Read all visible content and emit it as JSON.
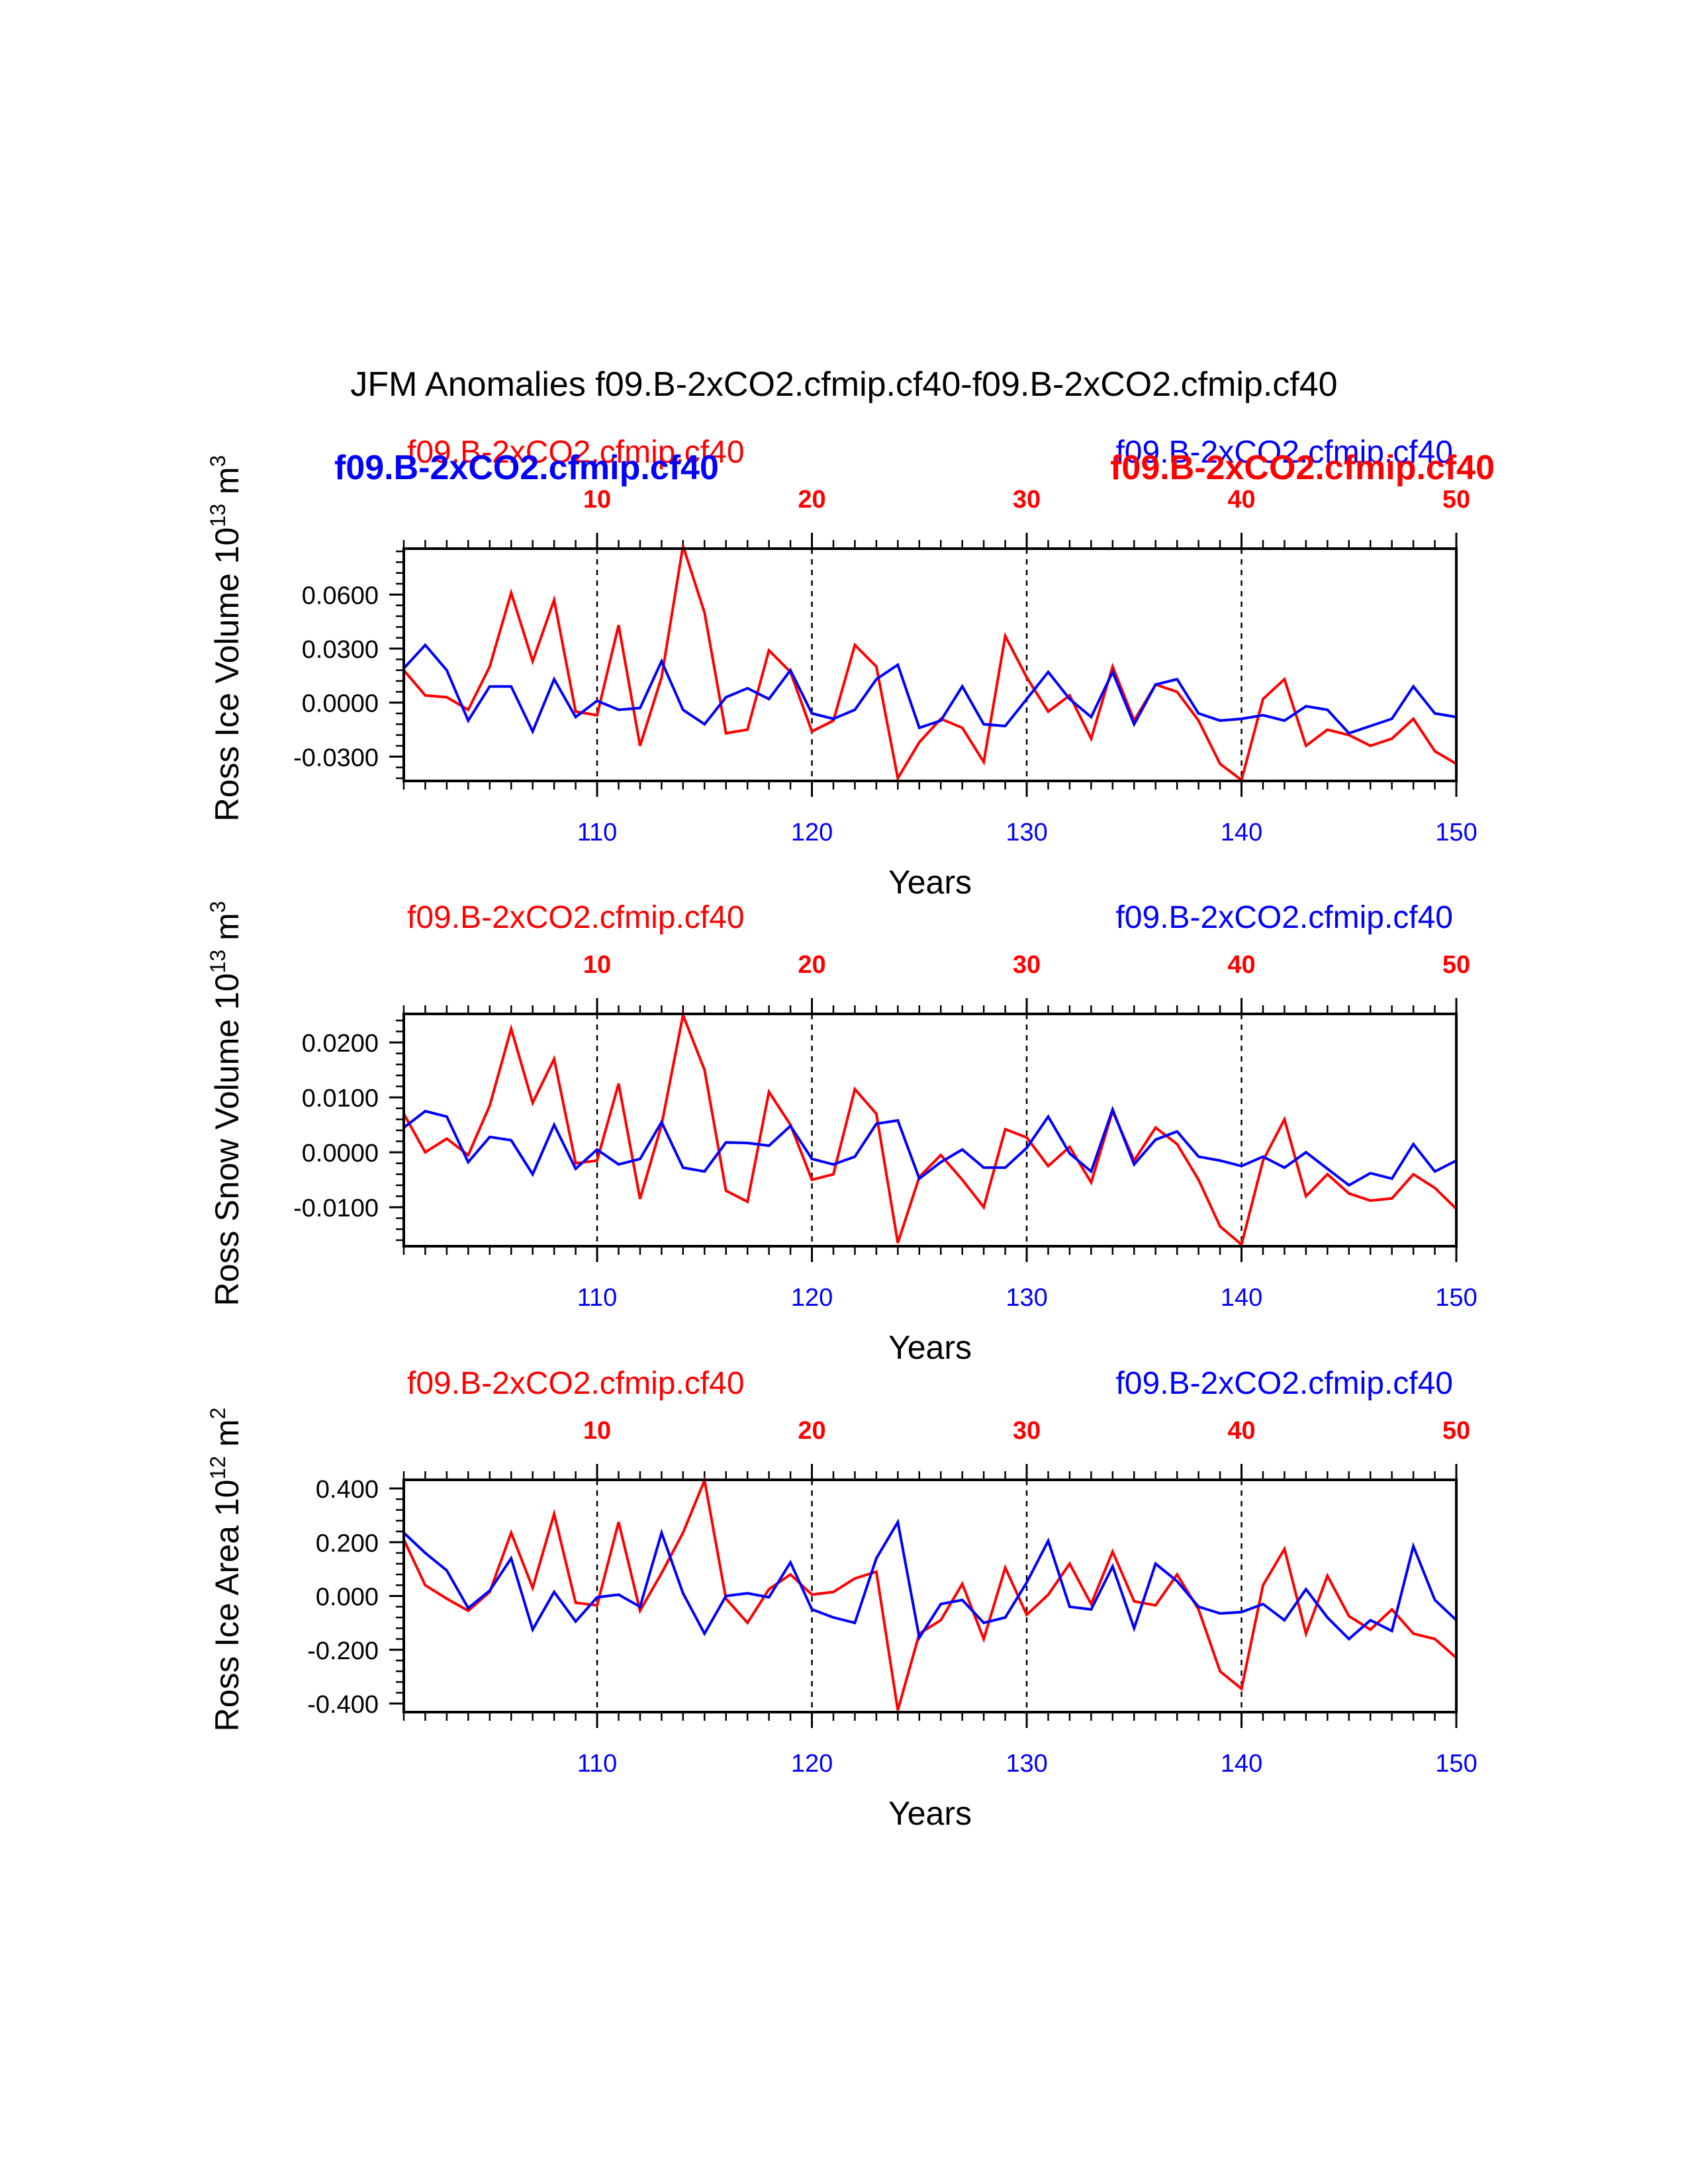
{
  "title": "JFM Anomalies f09.B-2xCO2.cfmip.cf40-f09.B-2xCO2.cfmip.cf40",
  "colors": {
    "series_a": "#ff0000",
    "series_b": "#0000ff",
    "axis": "#000000"
  },
  "chart_data": [
    {
      "type": "line",
      "ylabel": "Ross Ice Volume 10",
      "ylabel_sup": "13",
      "ylabel_unit": " m",
      "ylabel_unit_sup": "3",
      "xlabel": "Years",
      "top_left_label": "f09.B-2xCO2.cfmip.cf40",
      "top_right_label": "f09.B-2xCO2.cfmip.cf40",
      "overlay_left_label": "f09.B-2xCO2.cfmip.cf40",
      "overlay_right_label": "f09.B-2xCO2.cfmip.cf40",
      "xlim": [
        101,
        150
      ],
      "ylim": [
        -0.0435,
        0.0855
      ],
      "yticks": [
        0.06,
        0.03,
        0.0,
        -0.03
      ],
      "ytick_labels": [
        "0.0600",
        "0.0300",
        "0.0000",
        "-0.0300"
      ],
      "y_minor_step": 0.006,
      "bottom_ticks": [
        110,
        120,
        130,
        140,
        150
      ],
      "top_ticks": [
        10,
        20,
        30,
        40,
        50
      ],
      "top_axis_offset": 100,
      "dashed_at": [
        110,
        120,
        130,
        140
      ],
      "x": [
        101,
        102,
        103,
        104,
        105,
        106,
        107,
        108,
        109,
        110,
        111,
        112,
        113,
        114,
        115,
        116,
        117,
        118,
        119,
        120,
        121,
        122,
        123,
        124,
        125,
        126,
        127,
        128,
        129,
        130,
        131,
        132,
        133,
        134,
        135,
        136,
        137,
        138,
        139,
        140,
        141,
        142,
        143,
        144,
        145,
        146,
        147,
        148,
        149,
        150
      ],
      "series": [
        {
          "name": "red",
          "color": "#ff0000",
          "values": [
            0.018,
            0.004,
            0.003,
            -0.004,
            0.02,
            0.061,
            0.023,
            0.057,
            -0.005,
            -0.007,
            0.043,
            -0.024,
            0.014,
            0.087,
            0.05,
            -0.017,
            -0.015,
            0.029,
            0.017,
            -0.016,
            -0.01,
            0.032,
            0.02,
            -0.042,
            -0.022,
            -0.009,
            -0.014,
            -0.033,
            0.037,
            0.014,
            -0.005,
            0.004,
            -0.02,
            0.02,
            -0.01,
            0.01,
            0.006,
            -0.01,
            -0.034,
            -0.043,
            0.002,
            0.013,
            -0.024,
            -0.015,
            -0.018,
            -0.024,
            -0.02,
            -0.009,
            -0.027,
            -0.034
          ]
        },
        {
          "name": "blue",
          "color": "#0000ff",
          "values": [
            0.019,
            0.032,
            0.018,
            -0.01,
            0.009,
            0.009,
            -0.016,
            0.013,
            -0.008,
            0.001,
            -0.004,
            -0.003,
            0.023,
            -0.004,
            -0.012,
            0.003,
            0.008,
            0.002,
            0.018,
            -0.006,
            -0.009,
            -0.004,
            0.013,
            0.021,
            -0.014,
            -0.01,
            0.009,
            -0.012,
            -0.013,
            0.002,
            0.017,
            0.002,
            -0.008,
            0.017,
            -0.012,
            0.01,
            0.013,
            -0.006,
            -0.01,
            -0.009,
            -0.007,
            -0.01,
            -0.002,
            -0.004,
            -0.017,
            -0.013,
            -0.009,
            0.009,
            -0.006,
            -0.008
          ]
        }
      ]
    },
    {
      "type": "line",
      "ylabel": "Ross Snow Volume 10",
      "ylabel_sup": "13",
      "ylabel_unit": " m",
      "ylabel_unit_sup": "3",
      "xlabel": "Years",
      "top_left_label": "f09.B-2xCO2.cfmip.cf40",
      "top_right_label": "f09.B-2xCO2.cfmip.cf40",
      "xlim": [
        101,
        150
      ],
      "ylim": [
        -0.0171,
        0.0252
      ],
      "yticks": [
        0.02,
        0.01,
        0.0,
        -0.01
      ],
      "ytick_labels": [
        "0.0200",
        "0.0100",
        "0.0000",
        "-0.0100"
      ],
      "y_minor_step": 0.002,
      "bottom_ticks": [
        110,
        120,
        130,
        140,
        150
      ],
      "top_ticks": [
        10,
        20,
        30,
        40,
        50
      ],
      "top_axis_offset": 100,
      "dashed_at": [
        110,
        120,
        130,
        140
      ],
      "x": [
        101,
        102,
        103,
        104,
        105,
        106,
        107,
        108,
        109,
        110,
        111,
        112,
        113,
        114,
        115,
        116,
        117,
        118,
        119,
        120,
        121,
        122,
        123,
        124,
        125,
        126,
        127,
        128,
        129,
        130,
        131,
        132,
        133,
        134,
        135,
        136,
        137,
        138,
        139,
        140,
        141,
        142,
        143,
        144,
        145,
        146,
        147,
        148,
        149,
        150
      ],
      "series": [
        {
          "name": "red",
          "color": "#ff0000",
          "values": [
            0.007,
            0.0,
            0.0025,
            -0.0005,
            0.0085,
            0.0225,
            0.009,
            0.017,
            -0.002,
            -0.0015,
            0.0125,
            -0.0085,
            0.005,
            0.025,
            0.015,
            -0.007,
            -0.009,
            0.011,
            0.005,
            -0.005,
            -0.004,
            0.0115,
            0.007,
            -0.0165,
            -0.0045,
            -0.0005,
            -0.005,
            -0.01,
            0.0042,
            0.0027,
            -0.0025,
            0.001,
            -0.0055,
            0.0075,
            -0.0015,
            0.0045,
            0.0015,
            -0.005,
            -0.0135,
            -0.0168,
            -0.0015,
            0.006,
            -0.008,
            -0.004,
            -0.0075,
            -0.0088,
            -0.0084,
            -0.004,
            -0.0065,
            -0.0103
          ]
        },
        {
          "name": "blue",
          "color": "#0000ff",
          "values": [
            0.0045,
            0.0075,
            0.0065,
            -0.0018,
            0.0028,
            0.0022,
            -0.004,
            0.005,
            -0.003,
            0.0005,
            -0.0022,
            -0.0012,
            0.0055,
            -0.0028,
            -0.0035,
            0.0018,
            0.0017,
            0.0012,
            0.0048,
            -0.0012,
            -0.0022,
            -0.0008,
            0.0052,
            0.0058,
            -0.0048,
            -0.0018,
            0.0005,
            -0.0028,
            -0.0028,
            0.0008,
            0.0065,
            -0.0002,
            -0.0035,
            0.0078,
            -0.0022,
            0.0023,
            0.0038,
            -0.0008,
            -0.0015,
            -0.0025,
            -0.0008,
            -0.0028,
            0.0,
            -0.003,
            -0.006,
            -0.0038,
            -0.0048,
            0.0015,
            -0.0035,
            -0.0015
          ]
        }
      ]
    },
    {
      "type": "line",
      "ylabel": "Ross Ice Area 10",
      "ylabel_sup": "12",
      "ylabel_unit": " m",
      "ylabel_unit_sup": "2",
      "xlabel": "Years",
      "top_left_label": "f09.B-2xCO2.cfmip.cf40",
      "top_right_label": "f09.B-2xCO2.cfmip.cf40",
      "xlim": [
        101,
        150
      ],
      "ylim": [
        -0.432,
        0.432
      ],
      "yticks": [
        0.4,
        0.2,
        0.0,
        -0.2,
        -0.4
      ],
      "ytick_labels": [
        "0.400",
        "0.200",
        "0.000",
        "-0.200",
        "-0.400"
      ],
      "y_minor_step": 0.04,
      "bottom_ticks": [
        110,
        120,
        130,
        140,
        150
      ],
      "top_ticks": [
        10,
        20,
        30,
        40,
        50
      ],
      "top_axis_offset": 100,
      "dashed_at": [
        110,
        120,
        130,
        140
      ],
      "x": [
        101,
        102,
        103,
        104,
        105,
        106,
        107,
        108,
        109,
        110,
        111,
        112,
        113,
        114,
        115,
        116,
        117,
        118,
        119,
        120,
        121,
        122,
        123,
        124,
        125,
        126,
        127,
        128,
        129,
        130,
        131,
        132,
        133,
        134,
        135,
        136,
        137,
        138,
        139,
        140,
        141,
        142,
        143,
        144,
        145,
        146,
        147,
        148,
        149,
        150
      ],
      "series": [
        {
          "name": "red",
          "color": "#ff0000",
          "values": [
            0.21,
            0.04,
            -0.01,
            -0.055,
            0.015,
            0.235,
            0.03,
            0.305,
            -0.025,
            -0.035,
            0.275,
            -0.055,
            0.085,
            0.235,
            0.43,
            -0.01,
            -0.1,
            0.025,
            0.08,
            0.005,
            0.015,
            0.065,
            0.09,
            -0.425,
            -0.14,
            -0.09,
            0.045,
            -0.16,
            0.105,
            -0.07,
            0.005,
            0.12,
            -0.03,
            0.165,
            -0.02,
            -0.035,
            0.08,
            -0.05,
            -0.28,
            -0.345,
            0.04,
            0.175,
            -0.14,
            0.075,
            -0.075,
            -0.125,
            -0.05,
            -0.14,
            -0.16,
            -0.23
          ]
        },
        {
          "name": "blue",
          "color": "#0000ff",
          "values": [
            0.235,
            0.16,
            0.095,
            -0.045,
            0.02,
            0.14,
            -0.125,
            0.015,
            -0.095,
            -0.005,
            0.005,
            -0.04,
            0.235,
            0.01,
            -0.14,
            0.0,
            0.01,
            -0.005,
            0.125,
            -0.05,
            -0.08,
            -0.1,
            0.14,
            0.275,
            -0.155,
            -0.03,
            -0.015,
            -0.1,
            -0.08,
            0.05,
            0.205,
            -0.04,
            -0.05,
            0.11,
            -0.12,
            0.12,
            0.055,
            -0.04,
            -0.065,
            -0.06,
            -0.03,
            -0.09,
            0.025,
            -0.08,
            -0.16,
            -0.09,
            -0.13,
            0.185,
            -0.015,
            -0.09
          ]
        }
      ]
    }
  ]
}
